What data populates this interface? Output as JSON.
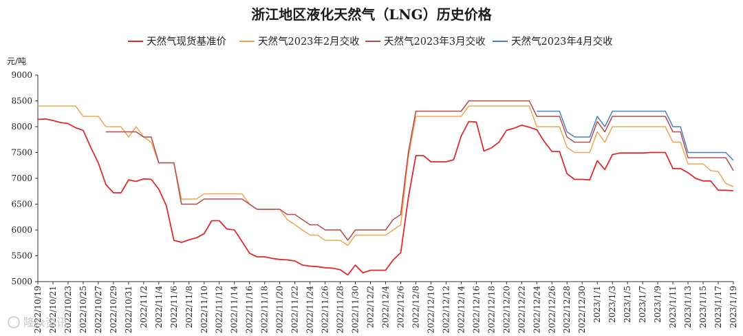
{
  "chart_data": {
    "type": "line",
    "title": "浙江地区液化天然气（LNG）历史价格",
    "ylabel": "元/吨",
    "ylim": [
      5000,
      9000
    ],
    "yticks": [
      5000,
      5500,
      6000,
      6500,
      7000,
      7500,
      8000,
      8500,
      9000
    ],
    "grid": false,
    "legend_position": "top-center",
    "x_tick_labels": [
      "2022/10/19",
      "2022/10/21",
      "2022/10/23",
      "2022/10/25",
      "2022/10/27",
      "2022/10/29",
      "2022/10/31",
      "2022/11/2",
      "2022/11/4",
      "2022/11/6",
      "2022/11/8",
      "2022/11/10",
      "2022/11/12",
      "2022/11/14",
      "2022/11/16",
      "2022/11/18",
      "2022/11/20",
      "2022/11/22",
      "2022/11/24",
      "2022/11/26",
      "2022/11/28",
      "2022/11/30",
      "2022/12/2",
      "2022/12/4",
      "2022/12/6",
      "2022/12/8",
      "2022/12/10",
      "2022/12/12",
      "2022/12/14",
      "2022/12/16",
      "2022/12/18",
      "2022/12/20",
      "2022/12/22",
      "2022/12/24",
      "2022/12/26",
      "2022/12/28",
      "2022/12/30",
      "2023/1/1",
      "2023/1/3",
      "2023/1/5",
      "2023/1/7",
      "2023/1/9",
      "2023/1/11",
      "2023/1/13",
      "2023/1/15",
      "2023/1/17",
      "2023/1/19"
    ],
    "series": [
      {
        "name": "天然气现货基准价",
        "color": "#e0282a",
        "points": [
          [
            "2022/10/19",
            8140
          ],
          [
            "2022/10/20",
            8150
          ],
          [
            "2022/10/21",
            8120
          ],
          [
            "2022/10/22",
            8080
          ],
          [
            "2022/10/23",
            8060
          ],
          [
            "2022/10/24",
            7980
          ],
          [
            "2022/10/25",
            7930
          ],
          [
            "2022/10/26",
            7600
          ],
          [
            "2022/10/27",
            7300
          ],
          [
            "2022/10/28",
            6880
          ],
          [
            "2022/10/29",
            6720
          ],
          [
            "2022/10/30",
            6720
          ],
          [
            "2022/10/31",
            6970
          ],
          [
            "2022/11/1",
            6940
          ],
          [
            "2022/11/2",
            6990
          ],
          [
            "2022/11/3",
            6980
          ],
          [
            "2022/11/4",
            6790
          ],
          [
            "2022/11/5",
            6470
          ],
          [
            "2022/11/6",
            5800
          ],
          [
            "2022/11/7",
            5760
          ],
          [
            "2022/11/8",
            5810
          ],
          [
            "2022/11/9",
            5850
          ],
          [
            "2022/11/10",
            5930
          ],
          [
            "2022/11/11",
            6180
          ],
          [
            "2022/11/12",
            6180
          ],
          [
            "2022/11/13",
            6020
          ],
          [
            "2022/11/14",
            6000
          ],
          [
            "2022/11/15",
            5780
          ],
          [
            "2022/11/16",
            5550
          ],
          [
            "2022/11/17",
            5480
          ],
          [
            "2022/11/18",
            5480
          ],
          [
            "2022/11/19",
            5450
          ],
          [
            "2022/11/20",
            5430
          ],
          [
            "2022/11/21",
            5420
          ],
          [
            "2022/11/22",
            5400
          ],
          [
            "2022/11/23",
            5320
          ],
          [
            "2022/11/24",
            5300
          ],
          [
            "2022/11/25",
            5290
          ],
          [
            "2022/11/26",
            5270
          ],
          [
            "2022/11/27",
            5260
          ],
          [
            "2022/11/28",
            5230
          ],
          [
            "2022/11/29",
            5130
          ],
          [
            "2022/11/30",
            5320
          ],
          [
            "2022/12/1",
            5170
          ],
          [
            "2022/12/2",
            5220
          ],
          [
            "2022/12/3",
            5220
          ],
          [
            "2022/12/4",
            5220
          ],
          [
            "2022/12/5",
            5420
          ],
          [
            "2022/12/6",
            5560
          ],
          [
            "2022/12/7",
            6620
          ],
          [
            "2022/12/8",
            7440
          ],
          [
            "2022/12/9",
            7440
          ],
          [
            "2022/12/10",
            7320
          ],
          [
            "2022/12/11",
            7320
          ],
          [
            "2022/12/12",
            7320
          ],
          [
            "2022/12/13",
            7360
          ],
          [
            "2022/12/14",
            7820
          ],
          [
            "2022/12/15",
            8100
          ],
          [
            "2022/12/16",
            8090
          ],
          [
            "2022/12/17",
            7530
          ],
          [
            "2022/12/18",
            7590
          ],
          [
            "2022/12/19",
            7700
          ],
          [
            "2022/12/20",
            7930
          ],
          [
            "2022/12/21",
            7970
          ],
          [
            "2022/12/22",
            8030
          ],
          [
            "2022/12/23",
            7990
          ],
          [
            "2022/12/24",
            7940
          ],
          [
            "2022/12/25",
            7710
          ],
          [
            "2022/12/26",
            7520
          ],
          [
            "2022/12/27",
            7520
          ],
          [
            "2022/12/28",
            7090
          ],
          [
            "2022/12/29",
            6980
          ],
          [
            "2022/12/30",
            6980
          ],
          [
            "2022/12/31",
            6970
          ],
          [
            "2023/1/1",
            7340
          ],
          [
            "2023/1/2",
            7170
          ],
          [
            "2023/1/3",
            7460
          ],
          [
            "2023/1/4",
            7490
          ],
          [
            "2023/1/5",
            7490
          ],
          [
            "2023/1/6",
            7490
          ],
          [
            "2023/1/7",
            7490
          ],
          [
            "2023/1/8",
            7500
          ],
          [
            "2023/1/9",
            7500
          ],
          [
            "2023/1/10",
            7500
          ],
          [
            "2023/1/11",
            7190
          ],
          [
            "2023/1/12",
            7190
          ],
          [
            "2023/1/13",
            7110
          ],
          [
            "2023/1/14",
            7000
          ],
          [
            "2023/1/15",
            6950
          ],
          [
            "2023/1/16",
            6950
          ],
          [
            "2023/1/17",
            6770
          ],
          [
            "2023/1/18",
            6770
          ],
          [
            "2023/1/19",
            6760
          ]
        ]
      },
      {
        "name": "天然气2023年2月交收",
        "color": "#f0a552",
        "points": [
          [
            "2022/10/19",
            8400
          ],
          [
            "2022/10/24",
            8400
          ],
          [
            "2022/10/25",
            8200
          ],
          [
            "2022/10/27",
            8200
          ],
          [
            "2022/10/28",
            8000
          ],
          [
            "2022/10/30",
            8000
          ],
          [
            "2022/10/31",
            7800
          ],
          [
            "2022/11/1",
            8000
          ],
          [
            "2022/11/2",
            7800
          ],
          [
            "2022/11/3",
            7700
          ],
          [
            "2022/11/4",
            7300
          ],
          [
            "2022/11/6",
            7300
          ],
          [
            "2022/11/7",
            6600
          ],
          [
            "2022/11/9",
            6600
          ],
          [
            "2022/11/10",
            6700
          ],
          [
            "2022/11/15",
            6700
          ],
          [
            "2022/11/16",
            6500
          ],
          [
            "2022/11/17",
            6400
          ],
          [
            "2022/11/20",
            6400
          ],
          [
            "2022/11/21",
            6200
          ],
          [
            "2022/11/22",
            6100
          ],
          [
            "2022/11/23",
            6000
          ],
          [
            "2022/11/24",
            5900
          ],
          [
            "2022/11/25",
            5900
          ],
          [
            "2022/11/26",
            5800
          ],
          [
            "2022/11/28",
            5800
          ],
          [
            "2022/11/29",
            5700
          ],
          [
            "2022/11/30",
            5900
          ],
          [
            "2022/12/4",
            5900
          ],
          [
            "2022/12/5",
            6000
          ],
          [
            "2022/12/6",
            6100
          ],
          [
            "2022/12/7",
            7400
          ],
          [
            "2022/12/8",
            8200
          ],
          [
            "2022/12/14",
            8200
          ],
          [
            "2022/12/15",
            8400
          ],
          [
            "2022/12/23",
            8400
          ],
          [
            "2022/12/24",
            8000
          ],
          [
            "2022/12/27",
            8000
          ],
          [
            "2022/12/28",
            7600
          ],
          [
            "2022/12/29",
            7500
          ],
          [
            "2022/12/31",
            7500
          ],
          [
            "2023/1/1",
            7900
          ],
          [
            "2023/1/2",
            7700
          ],
          [
            "2023/1/3",
            8000
          ],
          [
            "2023/1/10",
            8000
          ],
          [
            "2023/1/11",
            7700
          ],
          [
            "2023/1/12",
            7700
          ],
          [
            "2023/1/13",
            7280
          ],
          [
            "2023/1/15",
            7280
          ],
          [
            "2023/1/16",
            7150
          ],
          [
            "2023/1/17",
            7130
          ],
          [
            "2023/1/18",
            6900
          ],
          [
            "2023/1/19",
            6840
          ]
        ]
      },
      {
        "name": "天然气2023年3月交收",
        "color": "#b84848",
        "points": [
          [
            "2022/10/28",
            7900
          ],
          [
            "2022/11/1",
            7900
          ],
          [
            "2022/11/2",
            7800
          ],
          [
            "2022/11/3",
            7800
          ],
          [
            "2022/11/4",
            7300
          ],
          [
            "2022/11/6",
            7300
          ],
          [
            "2022/11/7",
            6500
          ],
          [
            "2022/11/9",
            6500
          ],
          [
            "2022/11/10",
            6600
          ],
          [
            "2022/11/15",
            6600
          ],
          [
            "2022/11/16",
            6500
          ],
          [
            "2022/11/17",
            6400
          ],
          [
            "2022/11/20",
            6400
          ],
          [
            "2022/11/21",
            6300
          ],
          [
            "2022/11/22",
            6300
          ],
          [
            "2022/11/23",
            6200
          ],
          [
            "2022/11/24",
            6100
          ],
          [
            "2022/11/25",
            6100
          ],
          [
            "2022/11/26",
            6000
          ],
          [
            "2022/11/28",
            6000
          ],
          [
            "2022/11/29",
            5800
          ],
          [
            "2022/11/30",
            6000
          ],
          [
            "2022/12/4",
            6000
          ],
          [
            "2022/12/5",
            6200
          ],
          [
            "2022/12/6",
            6300
          ],
          [
            "2022/12/7",
            7500
          ],
          [
            "2022/12/8",
            8300
          ],
          [
            "2022/12/14",
            8300
          ],
          [
            "2022/12/15",
            8500
          ],
          [
            "2022/12/23",
            8500
          ],
          [
            "2022/12/24",
            8200
          ],
          [
            "2022/12/27",
            8200
          ],
          [
            "2022/12/28",
            7800
          ],
          [
            "2022/12/29",
            7700
          ],
          [
            "2022/12/31",
            7700
          ],
          [
            "2023/1/1",
            8100
          ],
          [
            "2023/1/2",
            7900
          ],
          [
            "2023/1/3",
            8200
          ],
          [
            "2023/1/10",
            8200
          ],
          [
            "2023/1/11",
            7900
          ],
          [
            "2023/1/12",
            7900
          ],
          [
            "2023/1/13",
            7400
          ],
          [
            "2023/1/18",
            7400
          ],
          [
            "2023/1/19",
            7150
          ]
        ]
      },
      {
        "name": "天然气2023年4月交收",
        "color": "#4a7fc4",
        "points": [
          [
            "2022/12/24",
            8300
          ],
          [
            "2022/12/27",
            8300
          ],
          [
            "2022/12/28",
            7900
          ],
          [
            "2022/12/29",
            7800
          ],
          [
            "2022/12/31",
            7800
          ],
          [
            "2023/1/1",
            8200
          ],
          [
            "2023/1/2",
            8000
          ],
          [
            "2023/1/3",
            8300
          ],
          [
            "2023/1/10",
            8300
          ],
          [
            "2023/1/11",
            8000
          ],
          [
            "2023/1/12",
            8000
          ],
          [
            "2023/1/13",
            7500
          ],
          [
            "2023/1/18",
            7500
          ],
          [
            "2023/1/19",
            7350
          ]
        ]
      }
    ]
  },
  "watermark": "隆众资讯"
}
